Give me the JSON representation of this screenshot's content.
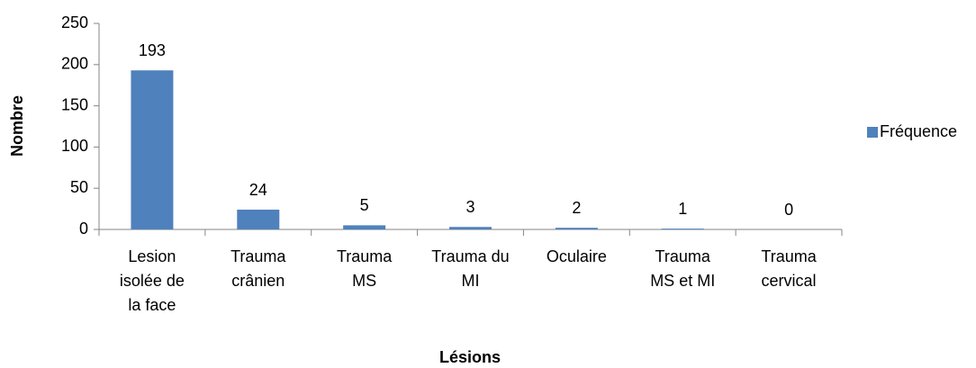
{
  "chart_data": {
    "type": "bar",
    "categories": [
      "Lesion\nisolée de\nla face",
      "Trauma\ncrânien",
      "Trauma\nMS",
      "Trauma du\nMI",
      "Oculaire",
      "Trauma\nMS et MI",
      "Trauma\ncervical"
    ],
    "series": [
      {
        "name": "Fréquence",
        "color": "#4f81bd",
        "values": [
          193,
          24,
          5,
          3,
          2,
          1,
          0
        ]
      }
    ],
    "ylim": [
      0,
      250
    ],
    "yticks": [
      0,
      50,
      100,
      150,
      200,
      250
    ],
    "xlabel": "Lésions",
    "ylabel": "Nombre",
    "legend": "right",
    "grid": false
  }
}
